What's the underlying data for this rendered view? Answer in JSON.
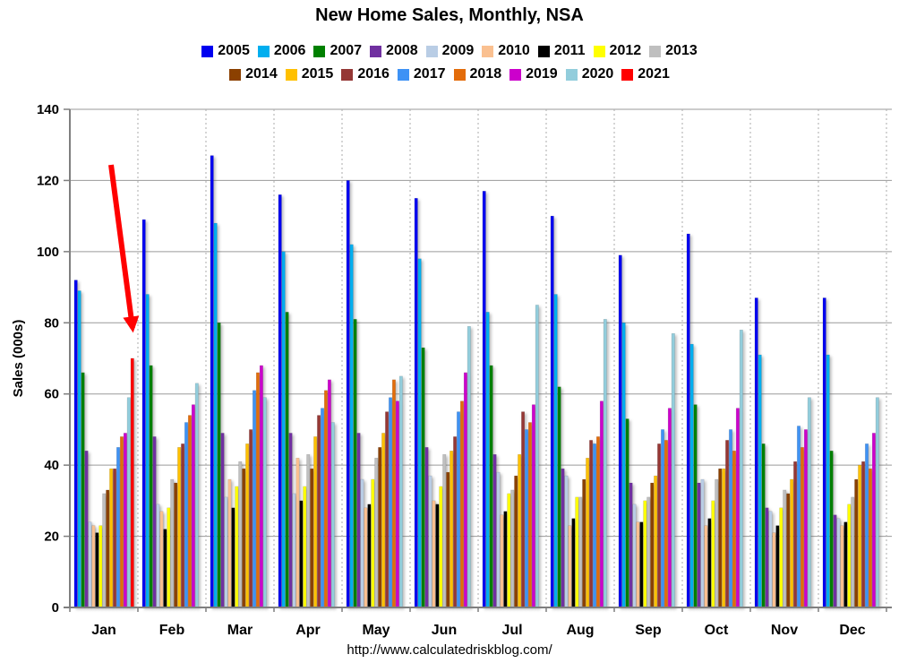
{
  "title": "New Home Sales, Monthly, NSA",
  "footer": {
    "url": "http://www.calculatedriskblog.com/"
  },
  "legend": {
    "rows": [
      [
        "2005",
        "2006",
        "2007",
        "2008",
        "2009",
        "2010",
        "2011",
        "2012",
        "2013"
      ],
      [
        "2014",
        "2015",
        "2016",
        "2017",
        "2018",
        "2019",
        "2020",
        "2021"
      ]
    ]
  },
  "annotations": [
    {
      "id": "jan-2021-arrow",
      "shape": "arrow",
      "color": "#FF0000",
      "target": {
        "month": "Jan",
        "year": "2021"
      }
    }
  ],
  "chart_data": {
    "type": "bar",
    "title": "New Home Sales, Monthly, NSA",
    "xlabel": "",
    "ylabel": "Sales (000s)",
    "ylim": [
      0,
      140
    ],
    "ytick_step": 20,
    "grid": true,
    "legend_position": "top",
    "categories": [
      "Jan",
      "Feb",
      "Mar",
      "Apr",
      "May",
      "Jun",
      "Jul",
      "Aug",
      "Sep",
      "Oct",
      "Nov",
      "Dec"
    ],
    "series": [
      {
        "name": "2005",
        "color": "#0000F0",
        "values": [
          92,
          109,
          127,
          116,
          120,
          115,
          117,
          110,
          99,
          105,
          87,
          87
        ]
      },
      {
        "name": "2006",
        "color": "#00AEEF",
        "values": [
          89,
          88,
          108,
          100,
          102,
          98,
          83,
          88,
          80,
          74,
          71,
          71
        ]
      },
      {
        "name": "2007",
        "color": "#008000",
        "values": [
          66,
          68,
          80,
          83,
          81,
          73,
          68,
          62,
          53,
          57,
          46,
          44
        ]
      },
      {
        "name": "2008",
        "color": "#7030A0",
        "values": [
          44,
          48,
          49,
          49,
          49,
          45,
          43,
          39,
          35,
          35,
          28,
          26
        ]
      },
      {
        "name": "2009",
        "color": "#B9CDE5",
        "values": [
          24,
          29,
          31,
          32,
          36,
          37,
          38,
          37,
          29,
          36,
          27,
          25
        ]
      },
      {
        "name": "2010",
        "color": "#FAC090",
        "values": [
          23,
          27,
          36,
          42,
          28,
          30,
          26,
          23,
          24,
          23,
          21,
          23
        ]
      },
      {
        "name": "2011",
        "color": "#000000",
        "values": [
          21,
          22,
          28,
          30,
          29,
          29,
          27,
          25,
          24,
          25,
          23,
          24
        ]
      },
      {
        "name": "2012",
        "color": "#FFFF00",
        "values": [
          23,
          28,
          34,
          34,
          36,
          34,
          32,
          31,
          30,
          30,
          28,
          29
        ]
      },
      {
        "name": "2013",
        "color": "#BFBFBF",
        "values": [
          32,
          36,
          41,
          43,
          42,
          43,
          33,
          31,
          31,
          36,
          33,
          31
        ]
      },
      {
        "name": "2014",
        "color": "#8B4000",
        "values": [
          33,
          35,
          39,
          39,
          45,
          38,
          37,
          36,
          35,
          39,
          32,
          36
        ]
      },
      {
        "name": "2015",
        "color": "#FFC000",
        "values": [
          39,
          45,
          46,
          48,
          49,
          44,
          43,
          42,
          37,
          39,
          36,
          40
        ]
      },
      {
        "name": "2016",
        "color": "#953735",
        "values": [
          39,
          46,
          50,
          54,
          55,
          48,
          55,
          47,
          46,
          47,
          41,
          41
        ]
      },
      {
        "name": "2017",
        "color": "#3E92F5",
        "values": [
          45,
          52,
          61,
          56,
          59,
          55,
          50,
          46,
          50,
          50,
          51,
          46
        ]
      },
      {
        "name": "2018",
        "color": "#E36C0A",
        "values": [
          48,
          54,
          66,
          61,
          64,
          58,
          52,
          48,
          47,
          44,
          45,
          39
        ]
      },
      {
        "name": "2019",
        "color": "#CC00CC",
        "values": [
          49,
          57,
          68,
          64,
          58,
          66,
          57,
          58,
          56,
          56,
          50,
          49
        ]
      },
      {
        "name": "2020",
        "color": "#92CDDC",
        "values": [
          59,
          63,
          59,
          52,
          65,
          79,
          85,
          81,
          77,
          78,
          59,
          59
        ]
      },
      {
        "name": "2021",
        "color": "#FF0000",
        "values": [
          70,
          null,
          null,
          null,
          null,
          null,
          null,
          null,
          null,
          null,
          null,
          null
        ]
      }
    ]
  }
}
